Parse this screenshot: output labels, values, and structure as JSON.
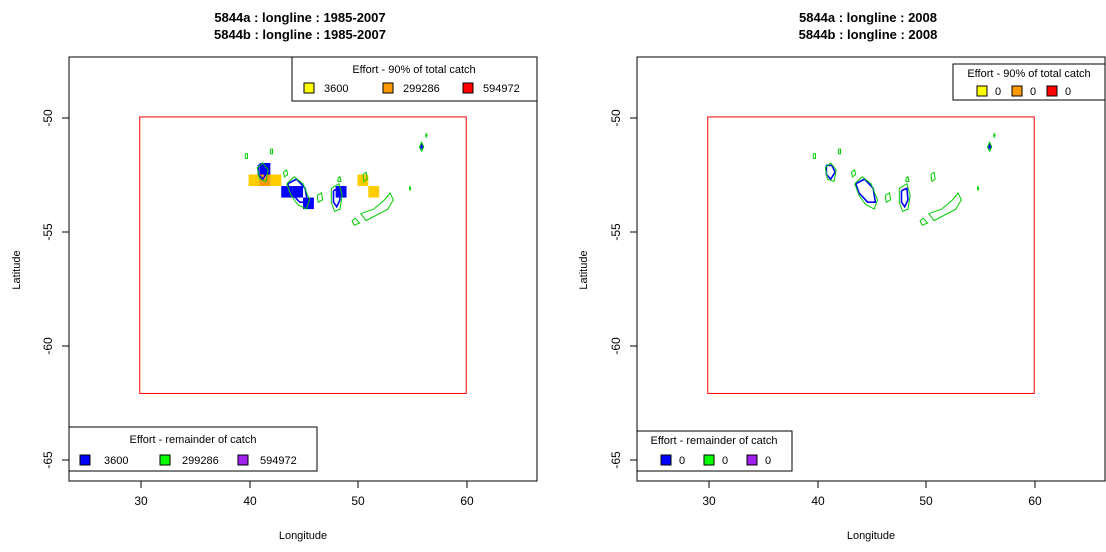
{
  "panels": [
    {
      "title_line1": "5844a  :  longline  :  1985-2007",
      "title_line2": "5844b  :  longline  :  1985-2007",
      "xlabel": "Longitude",
      "ylabel": "Latitude",
      "xticks": [
        "30",
        "40",
        "50",
        "60"
      ],
      "yticks": [
        "-50",
        "-55",
        "-60",
        "-65"
      ],
      "legend_top": {
        "title": "Effort - 90% of total catch",
        "labels": [
          "3600",
          "299286",
          "594972"
        ],
        "colors": [
          "#ffff00",
          "#ff9900",
          "#ff0000"
        ]
      },
      "legend_bottom": {
        "title": "Effort - remainder of catch",
        "labels": [
          "3600",
          "299286",
          "594972"
        ],
        "colors": [
          "#0000ff",
          "#00ff00",
          "#a020f0"
        ]
      },
      "effort_cells": [
        {
          "lon": 40,
          "lat": -52.5,
          "color": "#ffcc00"
        },
        {
          "lon": 41,
          "lat": -52.5,
          "color": "#ff9900"
        },
        {
          "lon": 41,
          "lat": -52,
          "color": "#0000ff"
        },
        {
          "lon": 42,
          "lat": -52.5,
          "color": "#ffcc00"
        },
        {
          "lon": 43,
          "lat": -53,
          "color": "#0000ff"
        },
        {
          "lon": 44,
          "lat": -53,
          "color": "#0000ff"
        },
        {
          "lon": 45,
          "lat": -53.5,
          "color": "#0000ff"
        },
        {
          "lon": 48,
          "lat": -53,
          "color": "#0000ff"
        },
        {
          "lon": 50,
          "lat": -52.5,
          "color": "#ffcc00"
        },
        {
          "lon": 51,
          "lat": -53,
          "color": "#ffcc00"
        }
      ]
    },
    {
      "title_line1": "5844a  :  longline  :  2008",
      "title_line2": "5844b  :  longline  :  2008",
      "xlabel": "Longitude",
      "ylabel": "Latitude",
      "xticks": [
        "30",
        "40",
        "50",
        "60"
      ],
      "yticks": [
        "-50",
        "-55",
        "-60",
        "-65"
      ],
      "legend_top": {
        "title": "Effort - 90% of total catch",
        "labels": [
          "0",
          "0",
          "0"
        ],
        "colors": [
          "#ffff00",
          "#ff9900",
          "#ff0000"
        ]
      },
      "legend_bottom": {
        "title": "Effort - remainder of catch",
        "labels": [
          "0",
          "0",
          "0"
        ],
        "colors": [
          "#0000ff",
          "#00ff00",
          "#a020f0"
        ]
      },
      "effort_cells": []
    }
  ],
  "map": {
    "xlim": [
      23.5,
      66.5
    ],
    "ylim": [
      -65.8,
      -47.4
    ],
    "study_area": {
      "lon_min": 30,
      "lon_max": 60,
      "lat_min": -62,
      "lat_max": -50,
      "color": "#ff0000"
    },
    "coast_color": "#00cc00",
    "shelf_color": "#0000ff"
  }
}
